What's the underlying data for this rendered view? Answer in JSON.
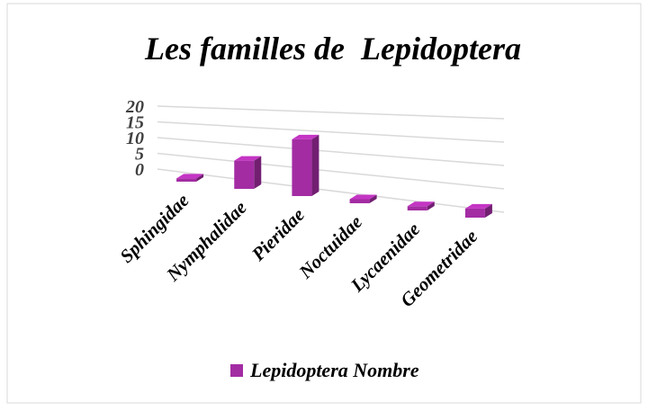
{
  "chart_data": {
    "type": "bar3d",
    "title": "Les familles de  Lepidoptera",
    "categories": [
      "Sphingidae",
      "Nymphalidae",
      "Pieridae",
      "Noctuidae",
      "Lycaenidae",
      "Geometridae"
    ],
    "series": [
      {
        "name": "Lepidoptera Nombre",
        "color": "#a32ca3",
        "values": [
          1,
          8,
          15,
          1,
          1,
          2
        ]
      }
    ],
    "ylim": [
      0,
      20
    ],
    "yticks": [
      0,
      5,
      10,
      15,
      20
    ],
    "grid": true
  }
}
